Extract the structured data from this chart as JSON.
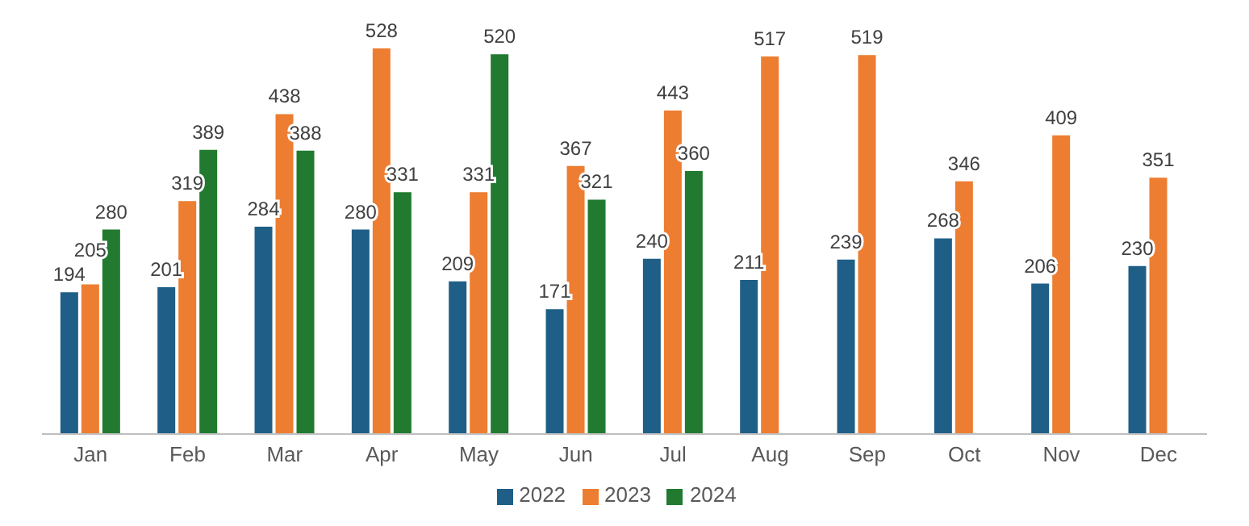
{
  "chart_data": {
    "type": "bar",
    "categories": [
      "Jan",
      "Feb",
      "Mar",
      "Apr",
      "May",
      "Jun",
      "Jul",
      "Aug",
      "Sep",
      "Oct",
      "Nov",
      "Dec"
    ],
    "series": [
      {
        "name": "2022",
        "color": "#1f5f87",
        "values": [
          194,
          201,
          284,
          280,
          209,
          171,
          240,
          211,
          239,
          268,
          206,
          230
        ]
      },
      {
        "name": "2023",
        "color": "#ed7d31",
        "values": [
          205,
          319,
          438,
          528,
          331,
          367,
          443,
          517,
          519,
          346,
          409,
          351
        ]
      },
      {
        "name": "2024",
        "color": "#217a30",
        "values": [
          280,
          389,
          388,
          331,
          520,
          321,
          360,
          null,
          null,
          null,
          null,
          null
        ]
      }
    ],
    "data_labels": true,
    "legend": "bottom",
    "grid": false
  }
}
